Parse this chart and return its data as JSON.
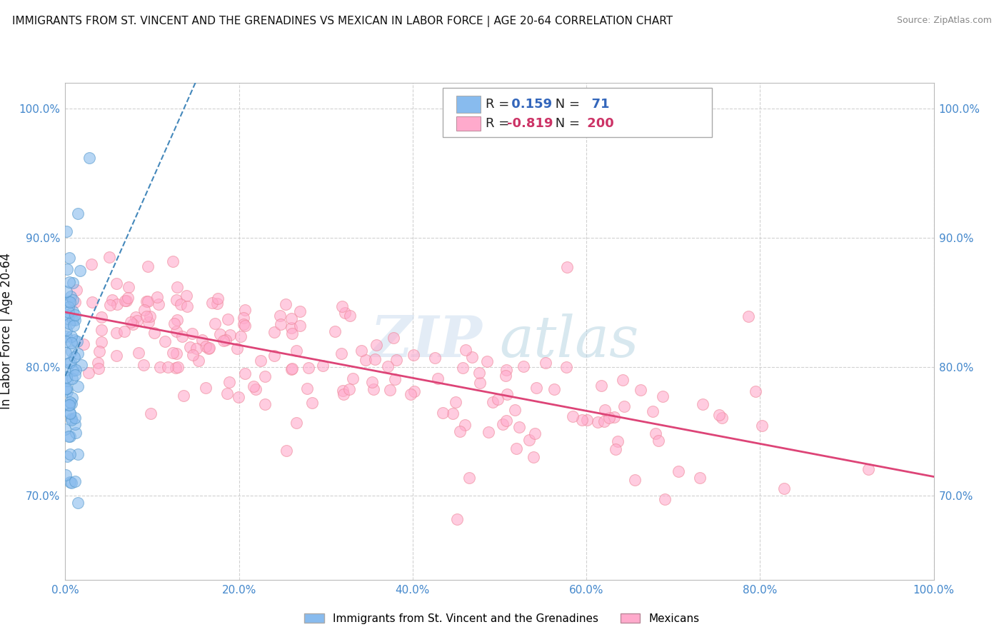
{
  "title": "IMMIGRANTS FROM ST. VINCENT AND THE GRENADINES VS MEXICAN IN LABOR FORCE | AGE 20-64 CORRELATION CHART",
  "source": "Source: ZipAtlas.com",
  "ylabel": "In Labor Force | Age 20-64",
  "xlim": [
    0.0,
    1.0
  ],
  "ylim": [
    0.635,
    1.02
  ],
  "yticks": [
    0.7,
    0.8,
    0.9,
    1.0
  ],
  "ytick_labels": [
    "70.0%",
    "80.0%",
    "90.0%",
    "100.0%"
  ],
  "xticks": [
    0.0,
    0.2,
    0.4,
    0.6,
    0.8,
    1.0
  ],
  "xtick_labels": [
    "0.0%",
    "20.0%",
    "40.0%",
    "60.0%",
    "80.0%",
    "100.0%"
  ],
  "blue_R": 0.159,
  "blue_N": 71,
  "pink_R": -0.819,
  "pink_N": 200,
  "blue_color": "#88bbee",
  "pink_color": "#ffaacc",
  "blue_edge_color": "#5599cc",
  "pink_edge_color": "#ee8899",
  "blue_line_color": "#4488bb",
  "pink_line_color": "#dd4477",
  "legend_label_blue": "Immigrants from St. Vincent and the Grenadines",
  "legend_label_pink": "Mexicans",
  "watermark_zip": "ZIP",
  "watermark_atlas": "atlas",
  "background_color": "#ffffff",
  "grid_color": "#cccccc",
  "title_color": "#111111",
  "axis_label_color": "#111111",
  "tick_color": "#4488cc",
  "blue_legend_text_color": "#3366bb",
  "pink_legend_text_color": "#cc3366"
}
